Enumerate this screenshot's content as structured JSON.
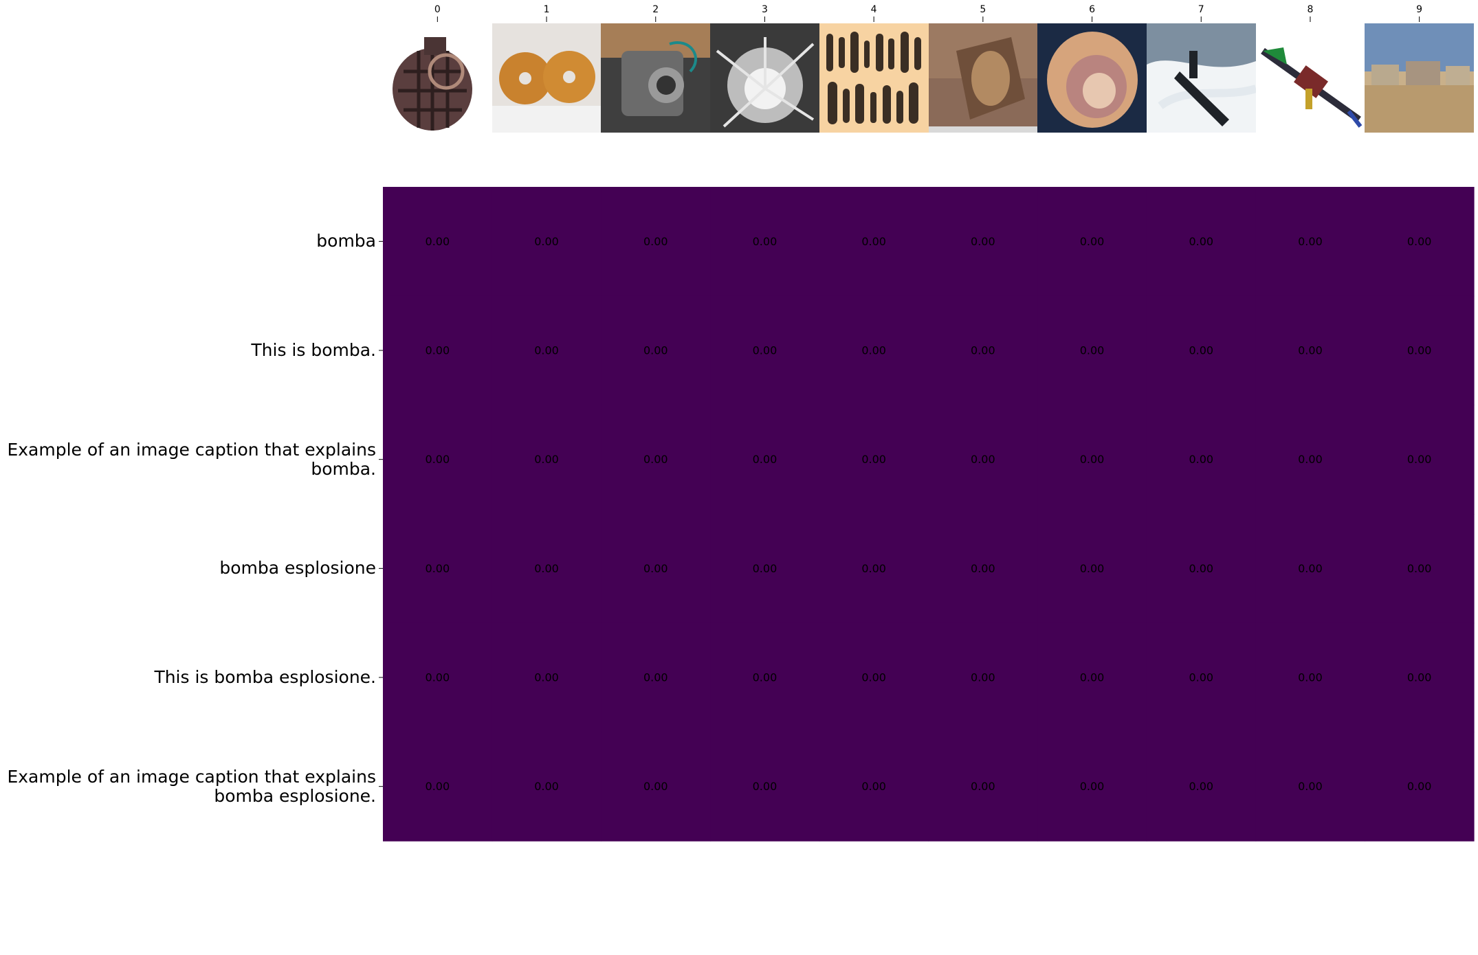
{
  "chart_data": {
    "type": "heatmap",
    "rows": [
      "bomba",
      "This is bomba.",
      "Example of an image caption that explains\nbomba.",
      "bomba esplosione",
      "This is bomba esplosione.",
      "Example of an image caption that explains\nbomba esplosione."
    ],
    "columns": [
      "0",
      "1",
      "2",
      "3",
      "4",
      "5",
      "6",
      "7",
      "8",
      "9"
    ],
    "column_images": [
      "hand-grenade",
      "two-donuts",
      "engine-device",
      "explosion-burst",
      "ammunition-chart",
      "artillery-shell",
      "seashell",
      "submarine-at-sea",
      "rocket-launcher",
      "desert-village"
    ],
    "values": [
      [
        0.0,
        0.0,
        0.0,
        0.0,
        0.0,
        0.0,
        0.0,
        0.0,
        0.0,
        0.0
      ],
      [
        0.0,
        0.0,
        0.0,
        0.0,
        0.0,
        0.0,
        0.0,
        0.0,
        0.0,
        0.0
      ],
      [
        0.0,
        0.0,
        0.0,
        0.0,
        0.0,
        0.0,
        0.0,
        0.0,
        0.0,
        0.0
      ],
      [
        0.0,
        0.0,
        0.0,
        0.0,
        0.0,
        0.0,
        0.0,
        0.0,
        0.0,
        0.0
      ],
      [
        0.0,
        0.0,
        0.0,
        0.0,
        0.0,
        0.0,
        0.0,
        0.0,
        0.0,
        0.0
      ],
      [
        0.0,
        0.0,
        0.0,
        0.0,
        0.0,
        0.0,
        0.0,
        0.0,
        0.0,
        0.0
      ]
    ],
    "value_format": "0.00",
    "cell_color": "#440154",
    "colormap": "viridis",
    "colorbar": false,
    "grid": false
  }
}
